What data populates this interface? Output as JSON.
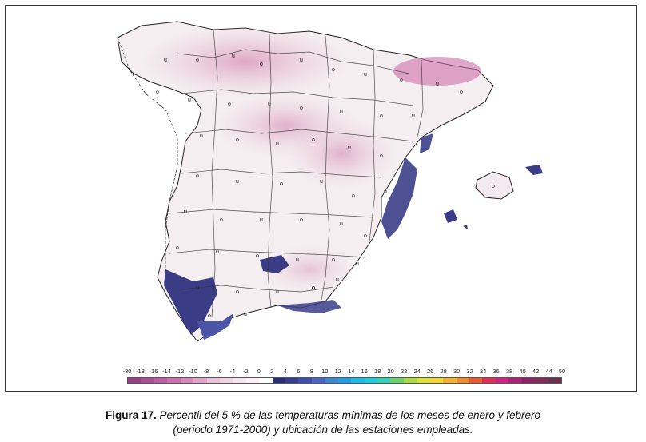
{
  "legend": {
    "ticks": [
      "-30",
      "-18",
      "-16",
      "-14",
      "-12",
      "-10",
      "-8",
      "-6",
      "-4",
      "-2",
      "0",
      "2",
      "4",
      "6",
      "8",
      "10",
      "12",
      "14",
      "16",
      "18",
      "20",
      "22",
      "24",
      "26",
      "28",
      "30",
      "32",
      "34",
      "36",
      "38",
      "40",
      "42",
      "44",
      "50"
    ],
    "colors": [
      "#9b3c8c",
      "#b04a9c",
      "#c25aa8",
      "#d06cb2",
      "#db86bf",
      "#e4a3cd",
      "#ecbfda",
      "#f2d3e4",
      "#f6e4ee",
      "#fbf1f6",
      "#ffffff",
      "#2b2f7a",
      "#333d93",
      "#3b4db3",
      "#4a64cc",
      "#3a87d8",
      "#1aa2e6",
      "#12bcec",
      "#16cfe2",
      "#2bd4b5",
      "#66d66a",
      "#a8dc3a",
      "#dde22e",
      "#f4d62a",
      "#f7b325",
      "#f48a23",
      "#ef5a28",
      "#e52a55",
      "#d91f86",
      "#b21e7a",
      "#8f2068",
      "#7e2a5a",
      "#6e2e50"
    ]
  },
  "caption": {
    "label": "Figura 17.",
    "line1": "Percentil del 5 % de las temperaturas mínimas de los meses de enero y febrero",
    "line2": "(periodo 1971-2000) y ubicación de las estaciones empleadas."
  },
  "map": {
    "region_fill": "#f3e6ec",
    "north_fill": "#e2b6cc",
    "east_fill": "#f7f0f3",
    "coast_fill": "#3a3d86",
    "warm_spots": "#cd6ea6"
  }
}
